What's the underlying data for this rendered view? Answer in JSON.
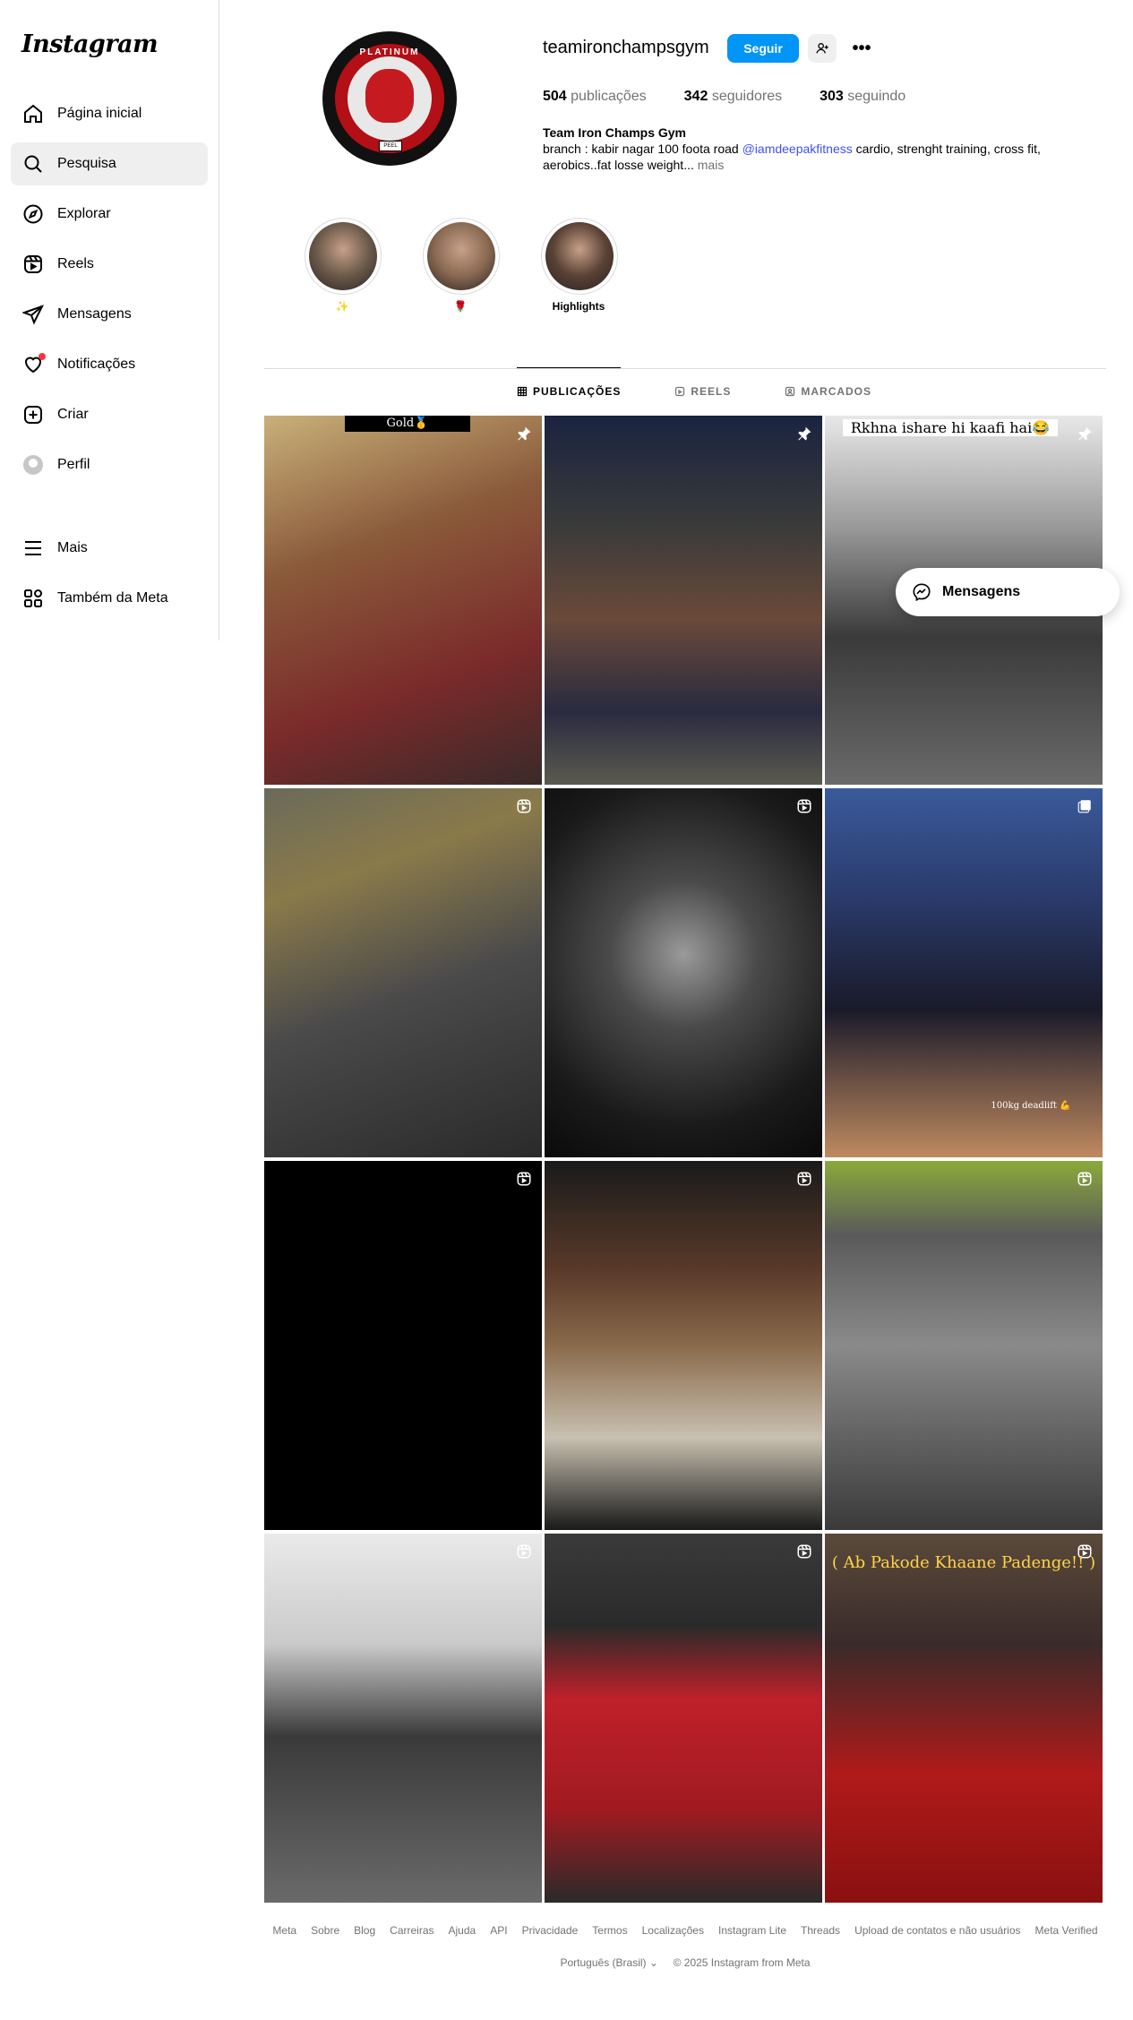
{
  "sidebar": {
    "logo": "Instagram",
    "items": [
      {
        "label": "Página inicial",
        "icon": "home-icon"
      },
      {
        "label": "Pesquisa",
        "icon": "search-icon"
      },
      {
        "label": "Explorar",
        "icon": "explore-icon"
      },
      {
        "label": "Reels",
        "icon": "reels-icon"
      },
      {
        "label": "Mensagens",
        "icon": "messages-icon"
      },
      {
        "label": "Notificações",
        "icon": "heart-icon"
      },
      {
        "label": "Criar",
        "icon": "create-icon"
      },
      {
        "label": "Perfil",
        "icon": "profile-icon"
      }
    ],
    "bottom_items": [
      {
        "label": "Mais",
        "icon": "menu-icon"
      },
      {
        "label": "Também da Meta",
        "icon": "meta-apps-icon"
      }
    ],
    "active_item": "Pesquisa"
  },
  "profile": {
    "avatar_text": "PLATINUM",
    "avatar_tag": "PEEL",
    "username": "teamironchampsgym",
    "follow_label": "Seguir",
    "stats": {
      "posts_count": "504",
      "posts_label": "publicações",
      "followers_count": "342",
      "followers_label": "seguidores",
      "following_count": "303",
      "following_label": "seguindo"
    },
    "bio": {
      "name": "Team Iron Champs Gym",
      "line1_prefix": "branch : kabir nagar 100 foota road ",
      "mention": "@iamdeepakfitness",
      "line1_suffix": " cardio, strenght training, cross fit,",
      "line2": "aerobics..fat losse weight... ",
      "more": "mais"
    }
  },
  "highlights": [
    {
      "label": "✨",
      "color": "#6b5a4a"
    },
    {
      "label": "🌹",
      "color": "#8a6a52"
    },
    {
      "label": "Highlights",
      "color": "#5a4235"
    }
  ],
  "tabs": [
    {
      "label": "PUBLICAÇÕES",
      "icon": "grid-icon",
      "active": true
    },
    {
      "label": "REELS",
      "icon": "reels-tab-icon",
      "active": false
    },
    {
      "label": "MARCADOS",
      "icon": "tagged-icon",
      "active": false
    }
  ],
  "posts": [
    {
      "badge": "pin-icon",
      "caption": "Gold🥇",
      "bg": "linear-gradient(160deg,#c9b07a 0%,#8a5a3a 35%,#7a2a2a 70%,#3a2a2a 100%)"
    },
    {
      "badge": "pin-icon",
      "caption": "",
      "bg": "linear-gradient(180deg,#1a2440 0%,#3a3a3a 30%,#6a4a3a 55%,#2a2a40 80%,#5a5a50 100%)"
    },
    {
      "badge": "pin-icon",
      "caption": "Rkhna ishare hi kaafi hai😂",
      "bg": "linear-gradient(180deg,#e8e8e8 0%,#9a9a9a 30%,#3a3a3a 60%,#6a6a6a 100%)"
    },
    {
      "badge": "reel-icon",
      "caption": "",
      "bg": "linear-gradient(160deg,#6a6a5a 0%,#8a7a4a 25%,#4a4a4a 55%,#2a2a2a 100%)"
    },
    {
      "badge": "reel-icon",
      "caption": "",
      "bg": "radial-gradient(circle at 50% 45%,#9a9a9a 0%,#4a4a4a 30%,#1a1a1a 70%,#0a0a0a 100%)"
    },
    {
      "badge": "carousel-icon",
      "caption": "100kg deadlift 💪",
      "bg": "linear-gradient(180deg,#3a5a9a 0%,#2a3a6a 30%,#1a1a2a 60%,#c08a60 100%)"
    },
    {
      "badge": "reel-icon",
      "caption": "",
      "bg": "#000000"
    },
    {
      "badge": "reel-icon",
      "caption": "",
      "bg": "linear-gradient(180deg,#1a1a1a 0%,#5a3a2a 30%,#8a6a4a 50%,#c8c0b0 75%,#1a1a1a 100%)"
    },
    {
      "badge": "reel-icon",
      "caption": "",
      "bg": "linear-gradient(180deg,#8aaa3a 0%,#5a5a5a 20%,#8a8a8a 50%,#3a3a3a 100%)"
    },
    {
      "badge": "reel-icon",
      "caption": "",
      "bg": "linear-gradient(180deg,#eaeaea 0%,#cacaca 30%,#3a3a3a 55%,#6a6a6a 100%)"
    },
    {
      "badge": "reel-icon",
      "caption": "",
      "bg": "linear-gradient(180deg,#3a3a3a 0%,#2a2a2a 25%,#c0202a 45%,#a01a20 75%,#2a2a2a 100%)"
    },
    {
      "badge": "reel-icon",
      "caption": "( Ab Pakode Khaane Padenge!! )",
      "bg": "linear-gradient(180deg,#5a4a3a 0%,#3a2a2a 30%,#b01a1a 65%,#8a1010 100%)"
    }
  ],
  "message_popup": {
    "label": "Mensagens"
  },
  "footer": {
    "links": [
      "Meta",
      "Sobre",
      "Blog",
      "Carreiras",
      "Ajuda",
      "API",
      "Privacidade",
      "Termos",
      "Localizações",
      "Instagram Lite",
      "Threads",
      "Upload de contatos e não usuários",
      "Meta Verified"
    ],
    "language": "Português (Brasil)",
    "copyright": "© 2025 Instagram from Meta"
  }
}
